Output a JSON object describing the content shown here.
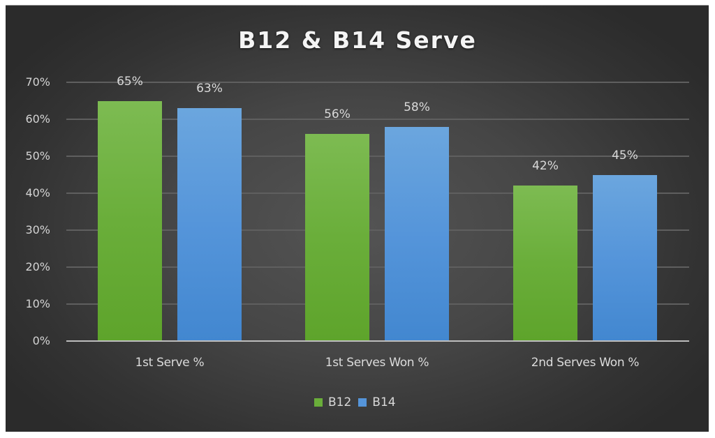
{
  "chart_data": {
    "type": "bar",
    "title": "B12 & B14 Serve",
    "categories": [
      "1st Serve %",
      "1st Serves Won %",
      "2nd Serves Won %"
    ],
    "series": [
      {
        "name": "B12",
        "values": [
          65,
          56,
          42
        ],
        "labels": [
          "65%",
          "56%",
          "42%"
        ],
        "color": "#6aae3a"
      },
      {
        "name": "B14",
        "values": [
          63,
          58,
          45
        ],
        "labels": [
          "63%",
          "58%",
          "45%"
        ],
        "color": "#5595da"
      }
    ],
    "xlabel": "",
    "ylabel": "",
    "ylim": [
      0,
      70
    ],
    "yticks": [
      "0%",
      "10%",
      "20%",
      "30%",
      "40%",
      "50%",
      "60%",
      "70%"
    ],
    "grid": true,
    "legend_position": "bottom",
    "background": "#464646"
  },
  "legend": {
    "items": [
      {
        "label": "B12",
        "color": "#6aae3a"
      },
      {
        "label": "B14",
        "color": "#5595da"
      }
    ]
  }
}
